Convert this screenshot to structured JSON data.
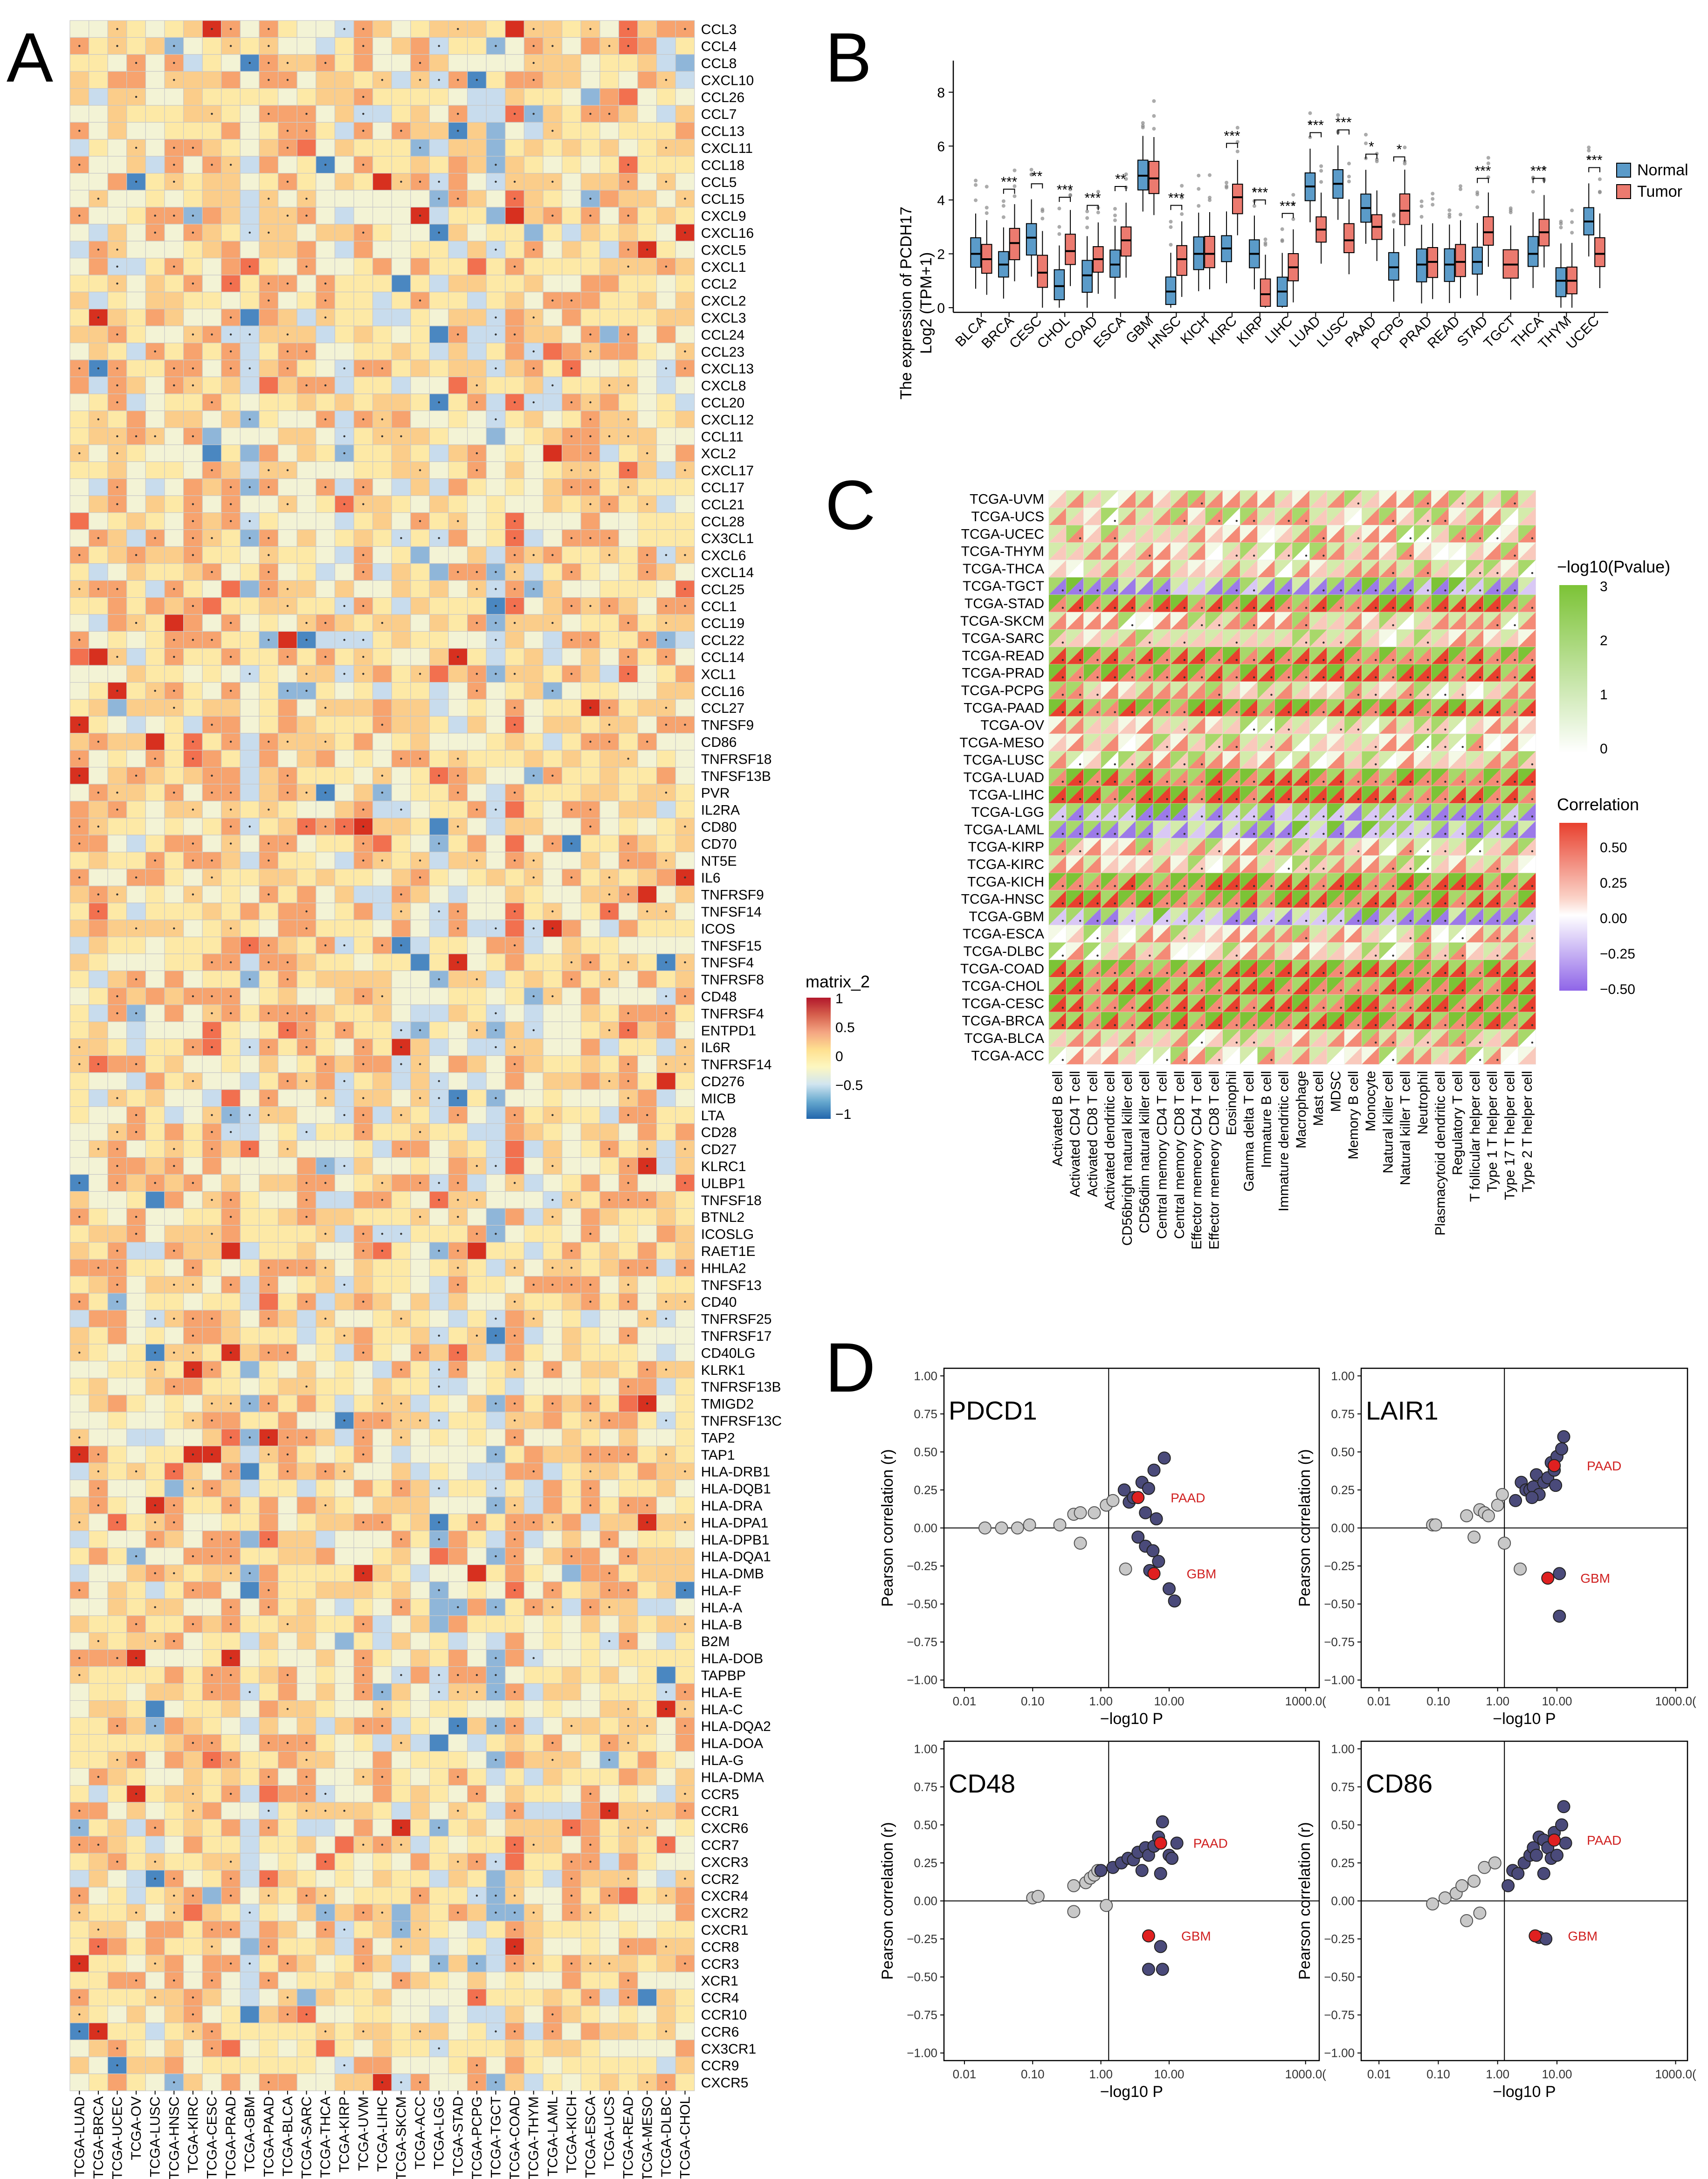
{
  "panel_labels": {
    "a": "A",
    "b": "B",
    "c": "C",
    "d": "D"
  },
  "chart_data": [
    {
      "id": "A",
      "type": "heatmap",
      "title": "",
      "columns": [
        "TCGA-LUAD",
        "TCGA-BRCA",
        "TCGA-UCEC",
        "TCGA-OV",
        "TCGA-LUSC",
        "TCGA-HNSC",
        "TCGA-KIRC",
        "TCGA-CESC",
        "TCGA-PRAD",
        "TCGA-GBM",
        "TCGA-PAAD",
        "TCGA-BLCA",
        "TCGA-SARC",
        "TCGA-THCA",
        "TCGA-KIRP",
        "TCGA-UVM",
        "TCGA-LIHC",
        "TCGA-SKCM",
        "TCGA-ACC",
        "TCGA-LGG",
        "TCGA-STAD",
        "TCGA-PCPG",
        "TCGA-TGCT",
        "TCGA-COAD",
        "TCGA-THYM",
        "TCGA-LAML",
        "TCGA-KICH",
        "TCGA-ESCA",
        "TCGA-UCS",
        "TCGA-READ",
        "TCGA-MESO",
        "TCGA-DLBC",
        "TCGA-CHOL"
      ],
      "rows": [
        "CCL3",
        "CCL4",
        "CCL8",
        "CXCL10",
        "CCL26",
        "CCL7",
        "CCL13",
        "CXCL11",
        "CCL18",
        "CCL5",
        "CCL15",
        "CXCL9",
        "CXCL16",
        "CXCL5",
        "CXCL1",
        "CCL2",
        "CXCL2",
        "CXCL3",
        "CCL24",
        "CCL23",
        "CXCL13",
        "CXCL8",
        "CCL20",
        "CXCL12",
        "CCL11",
        "XCL2",
        "CXCL17",
        "CCL17",
        "CCL21",
        "CCL28",
        "CX3CL1",
        "CXCL6",
        "CXCL14",
        "CCL25",
        "CCL1",
        "CCL19",
        "CCL22",
        "CCL14",
        "XCL1",
        "CCL16",
        "CCL27",
        "TNFSF9",
        "CD86",
        "TNFRSF18",
        "TNFSF13B",
        "PVR",
        "IL2RA",
        "CD80",
        "CD70",
        "NT5E",
        "IL6",
        "TNFRSF9",
        "TNFSF14",
        "ICOS",
        "TNFSF15",
        "TNFSF4",
        "TNFRSF8",
        "CD48",
        "TNFRSF4",
        "ENTPD1",
        "IL6R",
        "TNFRSF14",
        "CD276",
        "MICB",
        "LTA",
        "CD28",
        "CD27",
        "KLRC1",
        "ULBP1",
        "TNFSF18",
        "BTNL2",
        "ICOSLG",
        "RAET1E",
        "HHLA2",
        "TNFSF13",
        "CD40",
        "TNFRSF25",
        "TNFRSF17",
        "CD40LG",
        "KLRK1",
        "TNFRSF13B",
        "TMIGD2",
        "TNFRSF13C",
        "TAP2",
        "TAP1",
        "HLA-DRB1",
        "HLA-DQB1",
        "HLA-DRA",
        "HLA-DPA1",
        "HLA-DPB1",
        "HLA-DQA1",
        "HLA-DMB",
        "HLA-F",
        "HLA-A",
        "HLA-B",
        "B2M",
        "HLA-DOB",
        "TAPBP",
        "HLA-E",
        "HLA-C",
        "HLA-DQA2",
        "HLA-DOA",
        "HLA-G",
        "HLA-DMA",
        "CCR5",
        "CCR1",
        "CXCR6",
        "CCR7",
        "CXCR3",
        "CCR2",
        "CXCR4",
        "CXCR2",
        "CXCR1",
        "CCR8",
        "CCR3",
        "XCR1",
        "CCR4",
        "CCR10",
        "CCR6",
        "CX3CR1",
        "CCR9",
        "CXCR5"
      ],
      "legend": {
        "title": "matrix_2",
        "ticks": [
          "1",
          "0.5",
          "0",
          "−0.5",
          "−1"
        ],
        "colors": [
          "#2166ac",
          "#67a9cf",
          "#d1e5f0",
          "#fdf7c0",
          "#fee090",
          "#f4a582",
          "#d6604d",
          "#b2182b"
        ]
      }
    },
    {
      "id": "B",
      "type": "box",
      "ylabel_line1": "The expression of PCDH17",
      "ylabel_line2": "Log2 (TPM+1)",
      "ylim": [
        0,
        9
      ],
      "yticks": [
        "0",
        "2",
        "4",
        "6",
        "8"
      ],
      "categories": [
        "BLCA",
        "BRCA",
        "CESC",
        "CHOL",
        "COAD",
        "ESCA",
        "GBM",
        "HNSC",
        "KICH",
        "KIRC",
        "KIRP",
        "LIHC",
        "LUAD",
        "LUSC",
        "PAAD",
        "PCPG",
        "PRAD",
        "READ",
        "STAD",
        "TGCT",
        "THCA",
        "THYM",
        "UCEC"
      ],
      "legend": [
        {
          "name": "Normal",
          "color": "#5b9bc9"
        },
        {
          "name": "Tumor",
          "color": "#ec7a6f"
        }
      ],
      "normal_medians": [
        2.0,
        1.6,
        2.6,
        0.8,
        1.2,
        1.6,
        4.9,
        0.6,
        2.0,
        2.2,
        2.0,
        0.6,
        4.5,
        4.6,
        3.7,
        1.5,
        1.6,
        1.6,
        1.7,
        null,
        2.0,
        1.0,
        3.2
      ],
      "tumor_medians": [
        1.8,
        2.4,
        1.3,
        2.1,
        1.8,
        2.5,
        4.8,
        1.8,
        2.0,
        4.1,
        0.5,
        1.5,
        2.9,
        2.5,
        3.0,
        3.6,
        1.7,
        1.7,
        2.8,
        1.6,
        2.8,
        1.0,
        2.0
      ],
      "significance": [
        "",
        "***",
        "**",
        "***",
        "***",
        "**",
        "",
        "***",
        "",
        "***",
        "***",
        "***",
        "***",
        "***",
        "*",
        "*",
        "",
        "",
        "***",
        "",
        "***",
        "",
        "***"
      ]
    },
    {
      "id": "C",
      "type": "heatmap",
      "rows": [
        "TCGA-UVM",
        "TCGA-UCS",
        "TCGA-UCEC",
        "TCGA-THYM",
        "TCGA-THCA",
        "TCGA-TGCT",
        "TCGA-STAD",
        "TCGA-SKCM",
        "TCGA-SARC",
        "TCGA-READ",
        "TCGA-PRAD",
        "TCGA-PCPG",
        "TCGA-PAAD",
        "TCGA-OV",
        "TCGA-MESO",
        "TCGA-LUSC",
        "TCGA-LUAD",
        "TCGA-LIHC",
        "TCGA-LGG",
        "TCGA-LAML",
        "TCGA-KIRP",
        "TCGA-KIRC",
        "TCGA-KICH",
        "TCGA-HNSC",
        "TCGA-GBM",
        "TCGA-ESCA",
        "TCGA-DLBC",
        "TCGA-COAD",
        "TCGA-CHOL",
        "TCGA-CESC",
        "TCGA-BRCA",
        "TCGA-BLCA",
        "TCGA-ACC"
      ],
      "columns": [
        "Activated B cell",
        "Activated CD4 T cell",
        "Activated CD8 T cell",
        "Activated dendritic cell",
        "CD56bright natural killer cell",
        "CD56dim natural killer cell",
        "Central memory CD4 T cell",
        "Central memory CD8 T cell",
        "Effector memeory CD4 T cell",
        "Effector memeory CD8 T cell",
        "Eosinophil",
        "Gamma delta T cell",
        "Immature  B cell",
        "Immature dendritic cell",
        "Macrophage",
        "Mast cell",
        "MDSC",
        "Memory B cell",
        "Monocyte",
        "Natural killer cell",
        "Natural killer T cell",
        "Neutrophil",
        "Plasmacytoid dendritic cell",
        "Regulatory T cell",
        "T follicular helper cell",
        "Type 1 T helper cell",
        "Type 17 T helper cell",
        "Type 2 T helper cell"
      ],
      "legend_p": {
        "title": "−log10(Pvalue)",
        "ticks": [
          "3",
          "2",
          "1",
          "0"
        ]
      },
      "legend_r": {
        "title": "Correlation",
        "ticks": [
          "0.50",
          "0.25",
          "0.00",
          "−0.25",
          "−0.50"
        ]
      }
    },
    {
      "id": "D",
      "type": "scatter",
      "xlabel": "−log10 P",
      "ylabel": "Pearson correlation (r)",
      "xticks": [
        "0.01",
        "0.10",
        "1.00",
        "10.00",
        "1000.0("
      ],
      "yticks": [
        "1.00",
        "0.75",
        "0.50",
        "0.25",
        "0.00",
        "−0.25",
        "−0.50",
        "−0.75",
        "−1.00"
      ],
      "xlim_log10": [
        -2.3,
        3.2
      ],
      "ylim": [
        -1.05,
        1.05
      ],
      "panels": [
        {
          "title": "PDCD1",
          "gray": [
            [
              0.02,
              0.0
            ],
            [
              0.035,
              0.0
            ],
            [
              0.06,
              0.0
            ],
            [
              0.09,
              0.02
            ],
            [
              0.25,
              0.02
            ],
            [
              0.4,
              0.09
            ],
            [
              0.5,
              0.1
            ],
            [
              0.8,
              0.1
            ],
            [
              1.2,
              0.15
            ],
            [
              1.5,
              0.18
            ],
            [
              0.5,
              -0.1
            ],
            [
              2.3,
              -0.27
            ]
          ],
          "dark": [
            [
              2.2,
              0.25
            ],
            [
              2.6,
              0.17
            ],
            [
              3.0,
              0.2
            ],
            [
              4.0,
              0.3
            ],
            [
              5.0,
              0.26
            ],
            [
              6.0,
              0.38
            ],
            [
              4.5,
              0.1
            ],
            [
              6.5,
              0.06
            ],
            [
              3.5,
              -0.06
            ],
            [
              4.5,
              -0.12
            ],
            [
              5.8,
              -0.15
            ],
            [
              8.5,
              0.46
            ],
            [
              7.0,
              -0.22
            ],
            [
              5.2,
              -0.28
            ],
            [
              10.0,
              -0.4
            ],
            [
              12.0,
              -0.48
            ]
          ],
          "highlight": [
            {
              "label": "PAAD",
              "x": 3.5,
              "y": 0.2
            },
            {
              "label": "GBM",
              "x": 6.0,
              "y": -0.3
            }
          ]
        },
        {
          "title": "LAIR1",
          "gray": [
            [
              0.08,
              0.02
            ],
            [
              0.09,
              0.02
            ],
            [
              0.3,
              0.08
            ],
            [
              0.5,
              0.12
            ],
            [
              0.6,
              0.1
            ],
            [
              0.7,
              0.08
            ],
            [
              1.0,
              0.15
            ],
            [
              1.2,
              0.22
            ],
            [
              0.4,
              -0.06
            ],
            [
              1.3,
              -0.1
            ],
            [
              2.4,
              -0.27
            ]
          ],
          "dark": [
            [
              2.0,
              0.18
            ],
            [
              2.5,
              0.3
            ],
            [
              3.0,
              0.25
            ],
            [
              3.5,
              0.25
            ],
            [
              4.0,
              0.27
            ],
            [
              4.5,
              0.35
            ],
            [
              5.0,
              0.22
            ],
            [
              6.0,
              0.3
            ],
            [
              7.0,
              0.33
            ],
            [
              8.0,
              0.43
            ],
            [
              9.0,
              0.38
            ],
            [
              10.0,
              0.47
            ],
            [
              12.0,
              0.52
            ],
            [
              13.0,
              0.6
            ],
            [
              11.0,
              -0.3
            ],
            [
              11.0,
              -0.58
            ],
            [
              3.8,
              0.2
            ],
            [
              9.5,
              0.28
            ]
          ],
          "highlight": [
            {
              "label": "PAAD",
              "x": 9.0,
              "y": 0.41
            },
            {
              "label": "GBM",
              "x": 7.0,
              "y": -0.33
            }
          ]
        },
        {
          "title": "CD48",
          "gray": [
            [
              0.1,
              0.02
            ],
            [
              0.12,
              0.03
            ],
            [
              0.4,
              0.1
            ],
            [
              0.6,
              0.12
            ],
            [
              0.7,
              0.15
            ],
            [
              0.8,
              0.17
            ],
            [
              0.9,
              0.2
            ],
            [
              0.4,
              -0.07
            ],
            [
              1.2,
              -0.03
            ]
          ],
          "dark": [
            [
              1.0,
              0.2
            ],
            [
              1.5,
              0.22
            ],
            [
              2.0,
              0.25
            ],
            [
              2.5,
              0.28
            ],
            [
              3.0,
              0.27
            ],
            [
              3.5,
              0.32
            ],
            [
              4.0,
              0.2
            ],
            [
              4.5,
              0.35
            ],
            [
              5.0,
              0.3
            ],
            [
              6.0,
              0.36
            ],
            [
              7.0,
              0.42
            ],
            [
              8.0,
              0.52
            ],
            [
              10.0,
              0.3
            ],
            [
              11.0,
              0.28
            ],
            [
              13.0,
              0.38
            ],
            [
              7.5,
              0.18
            ],
            [
              7.5,
              -0.3
            ],
            [
              5.0,
              -0.45
            ],
            [
              8.0,
              -0.45
            ]
          ],
          "highlight": [
            {
              "label": "PAAD",
              "x": 7.5,
              "y": 0.38
            },
            {
              "label": "GBM",
              "x": 5.0,
              "y": -0.23
            }
          ]
        },
        {
          "title": "CD86",
          "gray": [
            [
              0.08,
              -0.02
            ],
            [
              0.13,
              0.02
            ],
            [
              0.2,
              0.05
            ],
            [
              0.25,
              0.1
            ],
            [
              0.4,
              0.13
            ],
            [
              0.6,
              0.22
            ],
            [
              0.9,
              0.25
            ],
            [
              0.3,
              -0.13
            ],
            [
              0.5,
              -0.08
            ]
          ],
          "dark": [
            [
              1.5,
              0.1
            ],
            [
              1.8,
              0.2
            ],
            [
              2.2,
              0.18
            ],
            [
              2.8,
              0.25
            ],
            [
              3.5,
              0.3
            ],
            [
              4.0,
              0.35
            ],
            [
              4.5,
              0.3
            ],
            [
              5.0,
              0.42
            ],
            [
              6.0,
              0.4
            ],
            [
              7.0,
              0.35
            ],
            [
              8.0,
              0.28
            ],
            [
              9.0,
              0.45
            ],
            [
              10.0,
              0.3
            ],
            [
              12.0,
              0.5
            ],
            [
              13.0,
              0.62
            ],
            [
              14.0,
              0.38
            ],
            [
              6.0,
              0.18
            ],
            [
              5.0,
              -0.24
            ],
            [
              6.5,
              -0.25
            ]
          ],
          "highlight": [
            {
              "label": "PAAD",
              "x": 9.0,
              "y": 0.4
            },
            {
              "label": "GBM",
              "x": 4.3,
              "y": -0.23
            }
          ]
        }
      ]
    }
  ]
}
